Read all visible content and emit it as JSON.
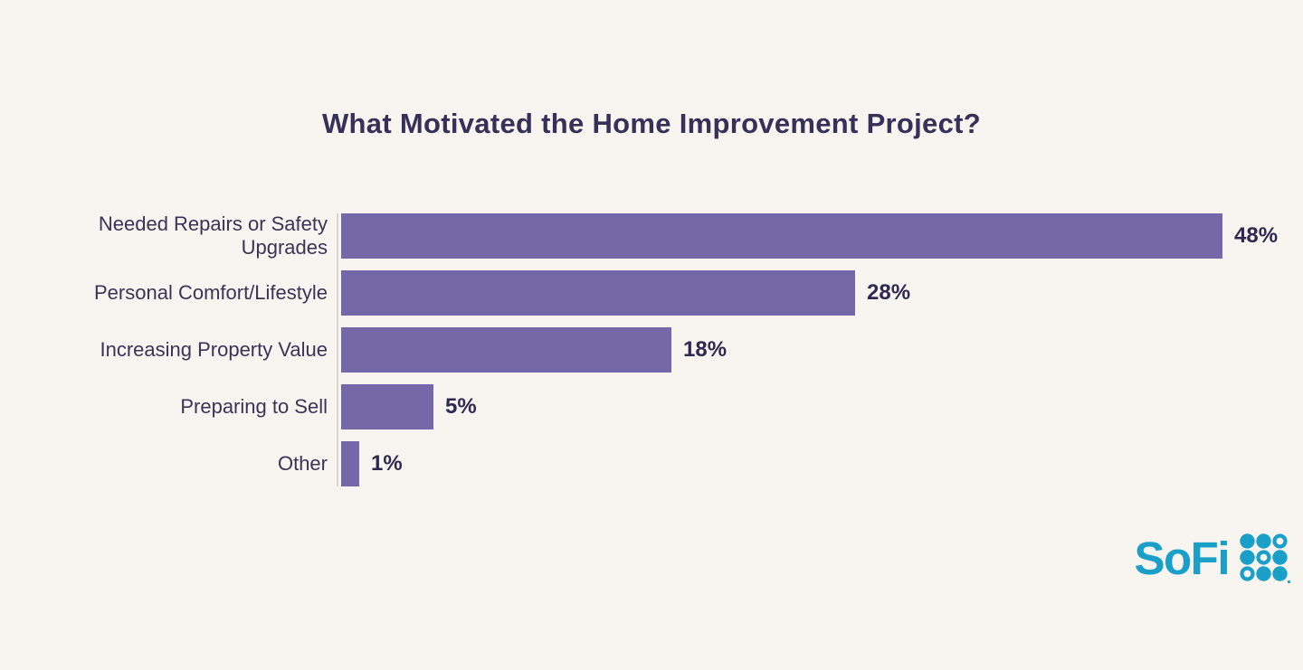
{
  "page": {
    "background_color": "#F8F5F0"
  },
  "chart_data": {
    "type": "bar",
    "orientation": "horizontal",
    "title": "What Motivated the Home Improvement Project?",
    "categories": [
      "Needed Repairs or Safety Upgrades",
      "Personal Comfort/Lifestyle",
      "Increasing Property Value",
      "Preparing to Sell",
      "Other"
    ],
    "values": [
      48,
      28,
      18,
      5,
      1
    ],
    "value_labels": [
      "48%",
      "28%",
      "18%",
      "5%",
      "1%"
    ],
    "xlabel": "",
    "ylabel": "",
    "xlim": [
      0,
      52
    ],
    "grid": false,
    "legend": false,
    "bar_color": "#7468A8",
    "title_color": "#373058",
    "category_label_color": "#3A3356",
    "value_label_color": "#2E2950",
    "axis_line_color": "#DAD6D1"
  },
  "logo": {
    "text": "SoFi",
    "brand_color": "#1AA0C8",
    "dot_grid": {
      "rows": 3,
      "cols": 3,
      "hollow_positions": "anti-diagonal (row1 col3, row2 col2, row3 col1)"
    }
  }
}
